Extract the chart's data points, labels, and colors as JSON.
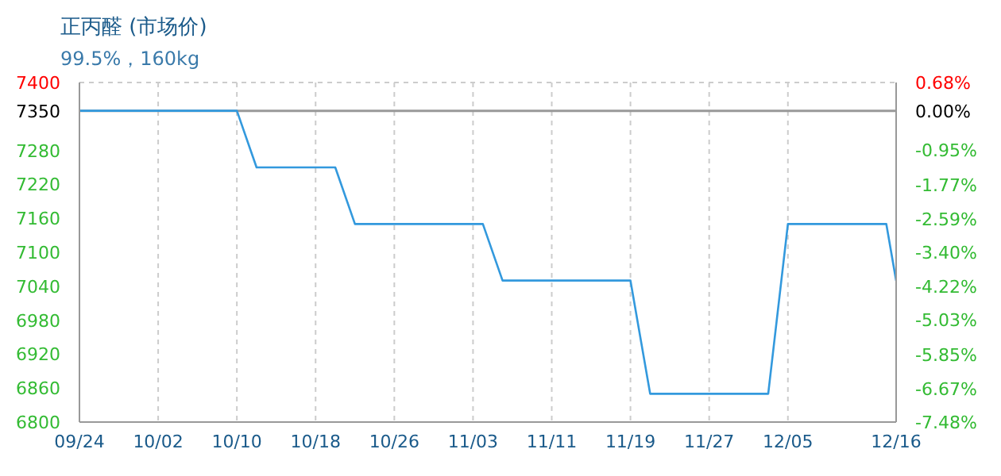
{
  "chart_data": {
    "type": "line",
    "title": "正丙醛 (市场价)",
    "subtitle": "99.5%，160kg",
    "x": [
      "--09-24",
      "--10-10",
      "--10-12",
      "--10-20",
      "--10-22",
      "--11-04",
      "--11-06",
      "--11-19",
      "--11-21",
      "--12-03",
      "--12-05",
      "--12-15",
      "--12-16"
    ],
    "series": [
      {
        "color": "#3399dd",
        "values": [
          7350,
          7350,
          7250,
          7250,
          7150,
          7150,
          7050,
          7050,
          6850,
          6850,
          7150,
          7150,
          7050
        ]
      }
    ],
    "xlim": [
      "--09-24",
      "--12-16"
    ],
    "xticks": [
      {
        "value": "--09-24",
        "label": "09/24"
      },
      {
        "value": "--10-02",
        "label": "10/02"
      },
      {
        "value": "--10-10",
        "label": "10/10"
      },
      {
        "value": "--10-18",
        "label": "10/18"
      },
      {
        "value": "--10-26",
        "label": "10/26"
      },
      {
        "value": "--11-03",
        "label": "11/03"
      },
      {
        "value": "--11-11",
        "label": "11/11"
      },
      {
        "value": "--11-19",
        "label": "11/19"
      },
      {
        "value": "--11-27",
        "label": "11/27"
      },
      {
        "value": "--12-05",
        "label": "12/05"
      },
      {
        "value": "--12-16",
        "label": "12/16"
      }
    ],
    "ylim": [
      6800,
      7400
    ],
    "yticks": [
      6800,
      6860,
      6920,
      6980,
      7040,
      7100,
      7160,
      7220,
      7280,
      7350,
      7400
    ],
    "y2lim": [
      -7.48,
      0.68
    ],
    "y2ticks": [
      {
        "value": 0.68,
        "label": "0.68%"
      },
      {
        "value": 0,
        "label": "0.00%"
      },
      {
        "value": -0.95,
        "label": "-0.95%"
      },
      {
        "value": -1.77,
        "label": "-1.77%"
      },
      {
        "value": -2.59,
        "label": "-2.59%"
      },
      {
        "value": -3.4,
        "label": "-3.40%"
      },
      {
        "value": -4.22,
        "label": "-4.22%"
      },
      {
        "value": -5.03,
        "label": "-5.03%"
      },
      {
        "value": -5.85,
        "label": "-5.85%"
      },
      {
        "value": -6.67,
        "label": "-6.67%"
      },
      {
        "value": -7.48,
        "label": "-7.48%"
      }
    ],
    "ref_lines": [
      {
        "axis": "y",
        "value": 7350,
        "color": "#999999"
      }
    ],
    "grid": true,
    "marker": "none",
    "line_style": "solid"
  }
}
